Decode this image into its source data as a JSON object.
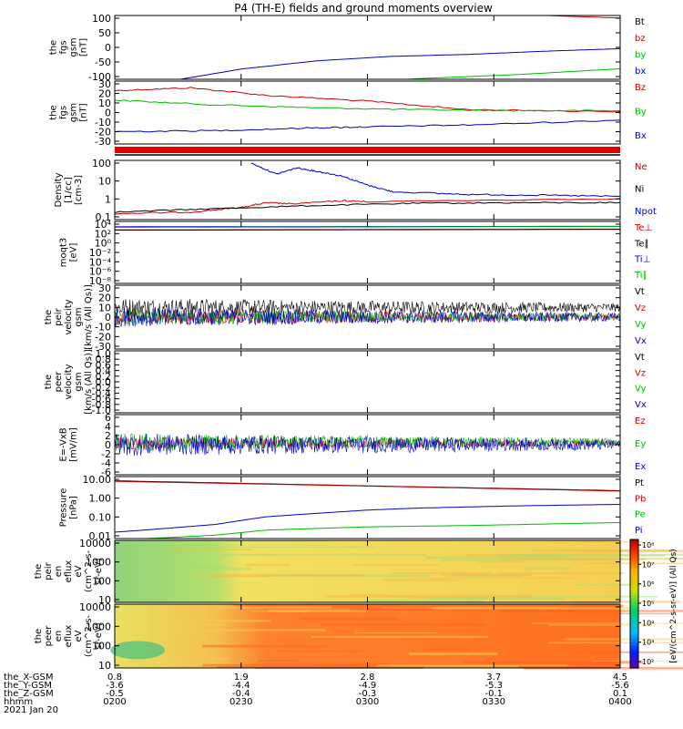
{
  "title": "P4 (TH-E) fields and ground moments overview",
  "chart_data": [
    {
      "id": "fgs_total",
      "type": "line",
      "ylabel": [
        "the",
        "fgs",
        "gsm",
        "[nT]"
      ],
      "yticks": [
        "100",
        "50",
        "0",
        "-50",
        "-100"
      ],
      "ylim": [
        -100,
        100
      ],
      "legend": [
        "Bt",
        "bz",
        "by",
        "bx"
      ],
      "legend_colors": [
        "#000000",
        "#d00000",
        "#00bb00",
        "#0000cc"
      ],
      "series": [
        {
          "name": "Bt",
          "x": [
            0,
            0.5,
            1
          ],
          "values": [
            140,
            120,
            110
          ]
        },
        {
          "name": "bz",
          "x": [
            0,
            0.2,
            0.5,
            0.8,
            1
          ],
          "values": [
            140,
            120,
            110,
            103,
            92
          ]
        },
        {
          "name": "by",
          "x": [
            0,
            0.6,
            0.8,
            1
          ],
          "values": [
            -160,
            -98,
            -85,
            -67
          ]
        },
        {
          "name": "bx",
          "x": [
            0,
            0.13,
            0.25,
            0.4,
            0.55,
            0.7,
            0.85,
            1
          ],
          "values": [
            -115,
            -100,
            -68,
            -42,
            -28,
            -22,
            -12,
            -4
          ]
        }
      ]
    },
    {
      "id": "fgs_comp",
      "type": "line",
      "ylabel": [
        "the",
        "fgs",
        "gsm",
        "[nT]"
      ],
      "yticks": [
        "30",
        "20",
        "10",
        "0",
        "-10",
        "-20",
        "-30"
      ],
      "ylim": [
        -33,
        33
      ],
      "legend": [
        "Bz",
        "By",
        "Bx"
      ],
      "legend_colors": [
        "#d00000",
        "#00bb00",
        "#0000cc"
      ],
      "series": [
        {
          "name": "Bz",
          "x": [
            0,
            0.15,
            0.3,
            0.5,
            0.7,
            1
          ],
          "values": [
            23,
            26,
            18,
            12,
            3,
            1
          ]
        },
        {
          "name": "By",
          "x": [
            0,
            0.2,
            0.4,
            0.6,
            0.8,
            1
          ],
          "values": [
            13,
            8,
            5,
            3,
            2,
            2
          ]
        },
        {
          "name": "Bx",
          "x": [
            0,
            0.2,
            0.4,
            0.5,
            0.7,
            1
          ],
          "values": [
            -20,
            -19,
            -16,
            -15,
            -13,
            -8
          ]
        }
      ]
    },
    {
      "id": "density",
      "type": "line",
      "ylabel": [
        "Density",
        "[1/cc]",
        "[cm-3]"
      ],
      "yticks": [
        "100",
        "10",
        "1",
        "0.1"
      ],
      "yscale": "log",
      "ylim": [
        0.05,
        300
      ],
      "legend": [
        "Ne",
        "Ni",
        "Npot"
      ],
      "legend_colors": [
        "#d00000",
        "#000000",
        "#0000cc"
      ],
      "series": [
        {
          "name": "Ne",
          "x": [
            0,
            0.15,
            0.25,
            0.3,
            0.35,
            0.45,
            0.5,
            1
          ],
          "values": [
            0.12,
            0.15,
            0.3,
            0.6,
            0.5,
            0.8,
            0.7,
            1.1
          ]
        },
        {
          "name": "Ni",
          "x": [
            0,
            0.2,
            0.4,
            0.6,
            0.8,
            1
          ],
          "values": [
            0.15,
            0.25,
            0.4,
            0.55,
            0.6,
            0.6
          ]
        },
        {
          "name": "Npot",
          "x": [
            0.27,
            0.32,
            0.36,
            0.4,
            0.45,
            0.5,
            0.55,
            0.7,
            0.85,
            1
          ],
          "values": [
            200,
            40,
            100,
            60,
            30,
            8,
            3,
            2,
            1.8,
            1.5
          ]
        }
      ]
    },
    {
      "id": "temperature",
      "type": "line",
      "ylabel": [
        "moqt3",
        "[eV]"
      ],
      "yticks": [
        "10⁴",
        "10²",
        "10⁰",
        "10⁻²",
        "10⁻⁴",
        "10⁻⁶",
        "10⁻⁸"
      ],
      "yscale": "log",
      "ylim": [
        1e-08,
        50000
      ],
      "legend": [
        "Te⊥",
        "Te∥",
        "Ti⊥",
        "Ti∥"
      ],
      "legend_colors": [
        "#d00000",
        "#000000",
        "#0000cc",
        "#00bb00"
      ],
      "series": [
        {
          "name": "Te⊥",
          "x": [
            0,
            1
          ],
          "values": [
            800,
            1200
          ]
        },
        {
          "name": "Te∥",
          "x": [
            0,
            1
          ],
          "values": [
            900,
            1300
          ]
        },
        {
          "name": "Ti⊥",
          "x": [
            0,
            1
          ],
          "values": [
            4000,
            5000
          ]
        },
        {
          "name": "Ti∥",
          "x": [
            0,
            1
          ],
          "values": [
            3000,
            4500
          ]
        }
      ]
    },
    {
      "id": "peir_velocity",
      "type": "line",
      "ylabel": [
        "the",
        "peir",
        "velocity",
        "gsm",
        "[km/s (All Qs)]"
      ],
      "yticks": [
        "30",
        "20",
        "10",
        "0",
        "-10",
        "-20",
        "-30"
      ],
      "ylim": [
        -30,
        30
      ],
      "legend": [
        "Vt",
        "Vz",
        "Vy",
        "Vx"
      ],
      "legend_colors": [
        "#000000",
        "#d00000",
        "#00bb00",
        "#0000cc"
      ],
      "series": [
        {
          "name": "Vt",
          "mean": 9,
          "spread": 9
        },
        {
          "name": "Vz",
          "mean": 0,
          "spread": 8
        },
        {
          "name": "Vy",
          "mean": 0,
          "spread": 7
        },
        {
          "name": "Vx",
          "mean": 0,
          "spread": 9
        }
      ]
    },
    {
      "id": "peer_velocity",
      "type": "line",
      "ylabel": [
        "the",
        "peer",
        "velocity",
        "gsm",
        "[km/s (All Qs)]"
      ],
      "yticks": [
        "1.0",
        "0.8",
        "0.6",
        "0.4",
        "0.2",
        "0.0",
        "-0.2",
        "-0.4",
        "-0.6",
        "-0.8",
        "-1.0"
      ],
      "ylim": [
        -1,
        1
      ],
      "legend": [
        "Vt",
        "Vz",
        "Vy",
        "Vx"
      ],
      "legend_colors": [
        "#000000",
        "#d00000",
        "#00bb00",
        "#0000cc"
      ],
      "series": []
    },
    {
      "id": "efield",
      "type": "line",
      "ylabel": [
        "E=-VxB",
        "[mV/m]"
      ],
      "yticks": [
        "6",
        "4",
        "2",
        "0",
        "-2",
        "-4",
        "-6"
      ],
      "ylim": [
        -6,
        6
      ],
      "legend": [
        "Ez",
        "Ey",
        "Ex"
      ],
      "legend_colors": [
        "#d00000",
        "#00bb00",
        "#0000cc"
      ],
      "series": [
        {
          "name": "Ez",
          "mean": 0.3,
          "spread": 1.3
        },
        {
          "name": "Ey",
          "mean": 0.5,
          "spread": 1.8
        },
        {
          "name": "Ex",
          "mean": 0,
          "spread": 2.3
        }
      ]
    },
    {
      "id": "pressure",
      "type": "line",
      "ylabel": [
        "Pressure",
        "[nPa]"
      ],
      "yticks": [
        "10.00",
        "1.00",
        "0.10",
        "0.01"
      ],
      "yscale": "log",
      "ylim": [
        0.005,
        25
      ],
      "legend": [
        "Pt",
        "Pb",
        "Pe",
        "Pi"
      ],
      "legend_colors": [
        "#000000",
        "#d00000",
        "#00bb00",
        "#0000cc"
      ],
      "series": [
        {
          "name": "Pt",
          "x": [
            0,
            0.5,
            1
          ],
          "values": [
            14,
            7,
            3.6
          ]
        },
        {
          "name": "Pb",
          "x": [
            0,
            0.5,
            1
          ],
          "values": [
            13,
            6.8,
            3.4
          ]
        },
        {
          "name": "Pe",
          "x": [
            0,
            0.2,
            0.3,
            0.5,
            0.7,
            1
          ],
          "values": [
            0.004,
            0.008,
            0.016,
            0.025,
            0.03,
            0.045
          ]
        },
        {
          "name": "Pi",
          "x": [
            0,
            0.1,
            0.2,
            0.25,
            0.3,
            0.4,
            0.5,
            0.6,
            0.8,
            1
          ],
          "values": [
            0.012,
            0.02,
            0.035,
            0.06,
            0.1,
            0.16,
            0.25,
            0.33,
            0.45,
            0.55
          ]
        }
      ]
    },
    {
      "id": "peir_eflux",
      "type": "heatmap",
      "ylabel": [
        "the",
        "peir",
        "en",
        "eflux",
        "eV",
        "(cm^2-s-",
        "sr-eV)"
      ],
      "yticks": [
        "10000",
        "1000",
        "100",
        "10"
      ]
    },
    {
      "id": "peer_eflux",
      "type": "heatmap",
      "ylabel": [
        "the",
        "peer",
        "en",
        "eflux",
        "eV",
        "(cm^2-s-",
        "sr-eV)"
      ],
      "yticks": [
        "10000",
        "1000",
        "100",
        "10"
      ]
    }
  ],
  "colorbar": {
    "ticks": [
      "10⁸",
      "10⁷",
      "10⁶",
      "10⁵",
      "10⁴",
      "10³",
      "10²"
    ],
    "label": "[eV/(cm^2-s-sr-eV)] (All Qs)"
  },
  "xaxis": {
    "ticks": [
      "0200",
      "0230",
      "0300",
      "0330",
      "0400"
    ],
    "rows": [
      {
        "label": "the_X-GSM",
        "values": [
          "0.8",
          "1.9",
          "2.8",
          "3.7",
          "4.5"
        ]
      },
      {
        "label": "the_Y-GSM",
        "values": [
          "-3.6",
          "-4.4",
          "-4.9",
          "-5.3",
          "-5.6"
        ]
      },
      {
        "label": "the_Z-GSM",
        "values": [
          "-0.5",
          "-0.4",
          "-0.3",
          "-0.1",
          "0.1"
        ]
      },
      {
        "label": "hhmm",
        "values": [
          "0200",
          "0230",
          "0300",
          "0330",
          "0400"
        ]
      }
    ],
    "date": "2021 Jan 20"
  },
  "colors": {
    "black": "#000000",
    "red": "#d00000",
    "green": "#00bb00",
    "blue": "#0000cc"
  }
}
